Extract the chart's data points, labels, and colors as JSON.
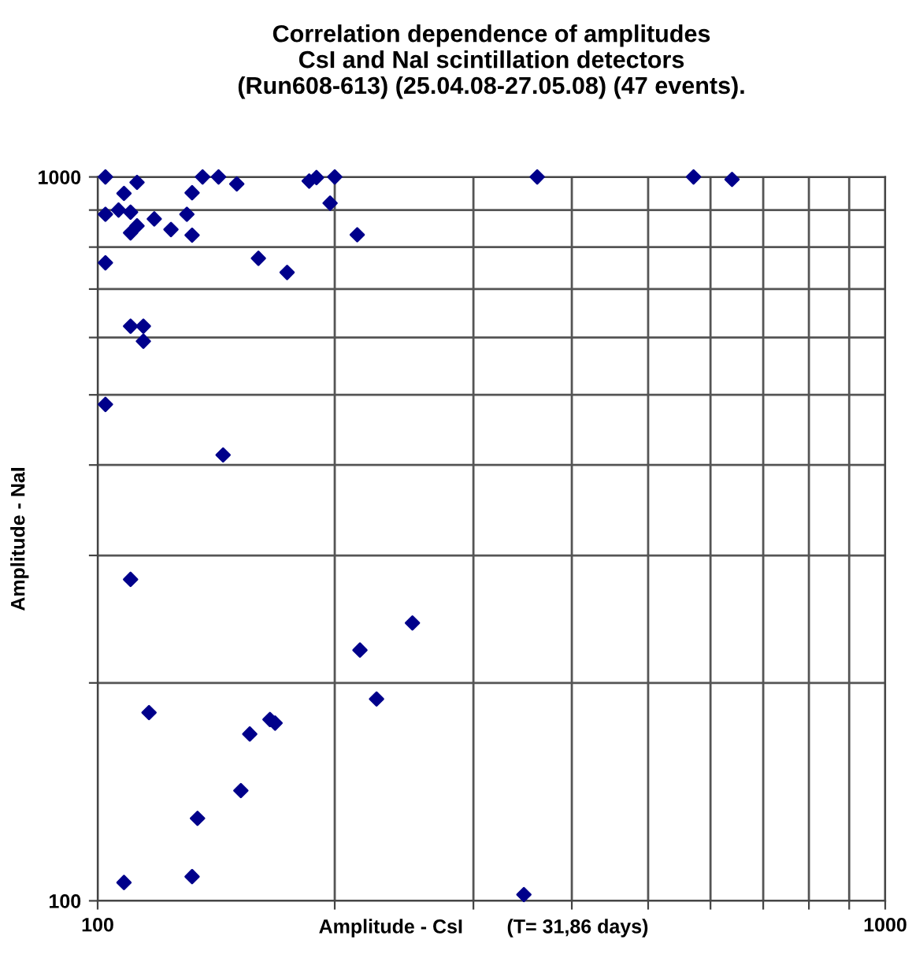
{
  "chart_data": {
    "type": "scatter",
    "title": "Correlation dependence of amplitudes\nCsI and NaI scintillation detectors\n(Run608-613) (25.04.08-27.05.08) (47 events).",
    "xlabel": "Amplitude - CsI        (T= 31,86 days)",
    "ylabel": "Amplitude - NaI",
    "log": "xy",
    "xlim": [
      100,
      1000
    ],
    "ylim": [
      100,
      1000
    ],
    "xticks": [
      100,
      {
        "value": 200,
        "label": null
      },
      {
        "value": 300,
        "label": null
      },
      {
        "value": 400,
        "label": null
      },
      {
        "value": 500,
        "label": null
      },
      {
        "value": 600,
        "label": null
      },
      {
        "value": 700,
        "label": null
      },
      {
        "value": 800,
        "label": null
      },
      {
        "value": 900,
        "label": null
      },
      1000
    ],
    "yticks": [
      100,
      {
        "value": 200,
        "label": null
      },
      {
        "value": 300,
        "label": null
      },
      {
        "value": 400,
        "label": null
      },
      {
        "value": 500,
        "label": null
      },
      {
        "value": 600,
        "label": null
      },
      {
        "value": 700,
        "label": null
      },
      {
        "value": 800,
        "label": null
      },
      {
        "value": 900,
        "label": null
      },
      1000
    ],
    "grid": true,
    "marker": "diamond",
    "series": [
      {
        "color": "#00008b",
        "x": [
          102.3,
          112.2,
          108,
          102.3,
          106.3,
          110.1,
          112.2,
          110.1,
          118,
          123.9,
          129.8,
          131.8,
          131.8,
          135.9,
          142.4,
          150.2,
          185.6,
          189.6,
          200,
          197.3,
          213.6,
          102.3,
          160,
          174,
          110.1,
          114.3,
          114.3,
          102.3,
          144.3,
          110.1,
          251,
          215.3,
          226,
          116.2,
          156,
          165.5,
          168,
          152,
          133.9,
          108,
          131.8,
          347.7,
          361.5,
          571,
          639
        ],
        "values": [
          1000,
          983,
          949,
          888,
          900,
          894,
          856,
          837,
          875,
          846,
          888,
          831,
          951,
          1000,
          1000,
          978,
          987,
          998,
          1000,
          920,
          832,
          761,
          772,
          738,
          622,
          622,
          593,
          485,
          413,
          278,
          242,
          222,
          190,
          182,
          170,
          178,
          176,
          142,
          130,
          106,
          108,
          102,
          1000,
          1000,
          992
        ]
      }
    ]
  }
}
